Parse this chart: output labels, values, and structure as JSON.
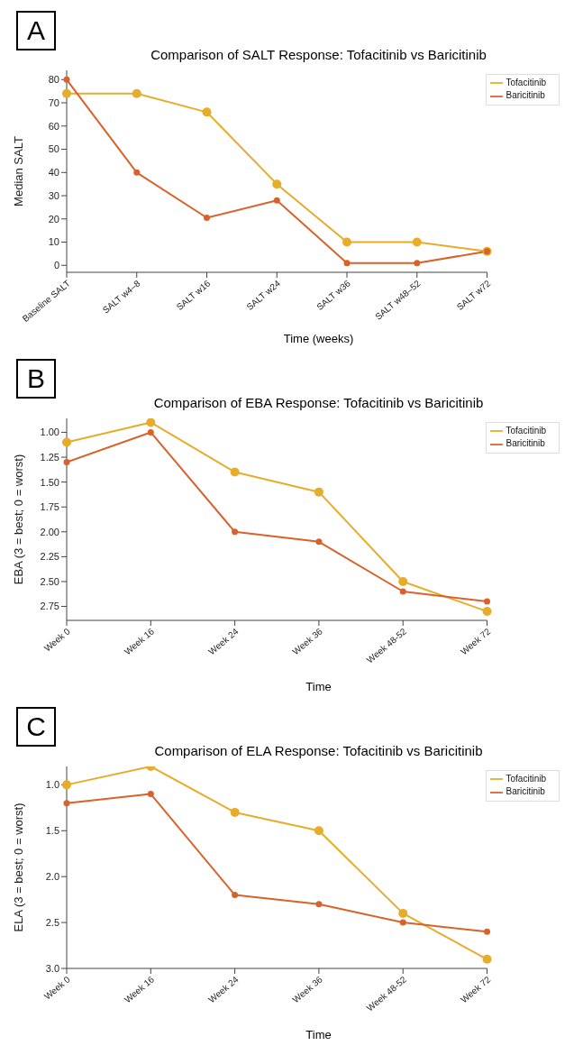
{
  "chart_data": [
    {
      "type": "line",
      "title": "Comparison of SALT Response: Tofacitinib vs Baricitinib",
      "xlabel": "Time (weeks)",
      "ylabel": "Median SALT",
      "annotations": [
        "A"
      ],
      "categories": [
        "Baseline SALT",
        "SALT w4–8",
        "SALT w16",
        "SALT w24",
        "SALT w36",
        "SALT w48–52",
        "SALT w72"
      ],
      "series": [
        {
          "name": "Tofacitinib",
          "color": "#e6ac2a",
          "values": [
            74,
            74,
            66,
            35,
            10,
            10,
            6
          ]
        },
        {
          "name": "Baricitinib",
          "color": "#d9622b",
          "values": [
            80,
            40,
            20.5,
            28,
            1,
            1,
            6
          ]
        }
      ],
      "ylim": [
        -3,
        84
      ],
      "yticks": [
        0,
        10,
        20,
        30,
        40,
        50,
        60,
        70,
        80
      ],
      "grid": false,
      "legend": "top right",
      "marker": "circle",
      "line_style": "solid"
    },
    {
      "type": "line",
      "title": "Comparison of EBA Response: Tofacitinib vs Baricitinib",
      "xlabel": "Time",
      "ylabel": "EBA (3 = best; 0 = worst)",
      "annotations": [
        "B"
      ],
      "categories": [
        "Week 0",
        "Week 16",
        "Week 24",
        "Week 36",
        "Week 48-52",
        "Week 72"
      ],
      "series": [
        {
          "name": "Tofacitinib",
          "color": "#e6ac2a",
          "values": [
            1.1,
            0.9,
            1.4,
            1.6,
            2.5,
            2.8
          ]
        },
        {
          "name": "Baricitinib",
          "color": "#d9622b",
          "values": [
            1.3,
            1.0,
            2.0,
            2.1,
            2.6,
            2.7
          ]
        }
      ],
      "ylim": [
        2.89,
        0.86
      ],
      "yticks": [
        {
          "value": 1,
          "label": "1.00"
        },
        1.25,
        {
          "value": 1.5,
          "label": "1.50"
        },
        1.75,
        {
          "value": 2,
          "label": "2.00"
        },
        2.25,
        {
          "value": 2.5,
          "label": "2.50"
        },
        2.75
      ],
      "grid": false,
      "legend": "top right",
      "marker": "circle",
      "line_style": "solid"
    },
    {
      "type": "line",
      "title": "Comparison of ELA Response: Tofacitinib vs Baricitinib",
      "xlabel": "Time",
      "ylabel": "ELA (3 = best; 0 = worst)",
      "annotations": [
        "C"
      ],
      "categories": [
        "Week 0",
        "Week 16",
        "Week 24",
        "Week 36",
        "Week 48-52",
        "Week 72"
      ],
      "series": [
        {
          "name": "Tofacitinib",
          "color": "#e6ac2a",
          "values": [
            1.0,
            0.8,
            1.3,
            1.5,
            2.4,
            2.9
          ]
        },
        {
          "name": "Baricitinib",
          "color": "#d9622b",
          "values": [
            1.2,
            1.1,
            2.2,
            2.3,
            2.5,
            2.6
          ]
        }
      ],
      "ylim": [
        3.0,
        0.8
      ],
      "yticks": [
        {
          "value": 1,
          "label": "1.0"
        },
        1.5,
        {
          "value": 2,
          "label": "2.0"
        },
        2.5,
        {
          "value": 3,
          "label": "3.0"
        }
      ],
      "grid": false,
      "legend": "top right",
      "marker": "circle",
      "line_style": "solid"
    }
  ]
}
